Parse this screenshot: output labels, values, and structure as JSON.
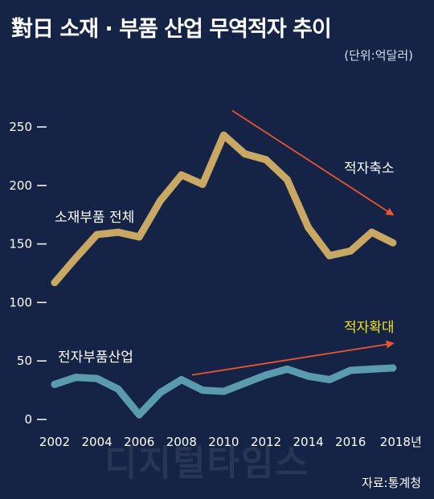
{
  "header": {
    "title": "對日 소재 · 부품 산업 무역적자 추이",
    "unit": "(단위:억달러)"
  },
  "footer": {
    "source": "자료:통계청",
    "watermark": "디지털타임스"
  },
  "colors": {
    "background": "#152446",
    "materials_series": "#c8a862",
    "electronics_series": "#5a9bb0",
    "trend_arrow": "#e8552e",
    "highlight_text": "#f2e21a"
  },
  "chart_data": {
    "type": "line",
    "title": "對日 소재 · 부품 산업 무역적자 추이",
    "ylabel": "(단위:억달러)",
    "xlabel": "",
    "ylim": [
      0,
      260
    ],
    "xlim": [
      2001.7,
      2018.2
    ],
    "yticks": [
      0,
      50,
      100,
      150,
      200,
      250
    ],
    "x_tick_labels": [
      "2002",
      "2004",
      "2006",
      "2008",
      "2010",
      "2012",
      "2014",
      "2016",
      "2018년"
    ],
    "x_tick_values": [
      2002,
      2004,
      2006,
      2008,
      2010,
      2012,
      2014,
      2016,
      2018
    ],
    "x": [
      2002,
      2003,
      2004,
      2005,
      2006,
      2007,
      2008,
      2009,
      2010,
      2011,
      2012,
      2013,
      2014,
      2015,
      2016,
      2017,
      2018
    ],
    "series": [
      {
        "name": "소재부품 전체",
        "values": [
          117,
          138,
          158,
          160,
          156,
          187,
          209,
          201,
          243,
          227,
          222,
          205,
          164,
          140,
          144,
          160,
          151
        ]
      },
      {
        "name": "전자부품산업",
        "values": [
          30,
          36,
          35,
          26,
          4,
          23,
          34,
          25,
          24,
          31,
          38,
          43,
          37,
          34,
          42,
          43,
          44
        ]
      }
    ],
    "annotations": [
      {
        "text": "적자축소",
        "x0": 2010.4,
        "y0": 264,
        "x1": 2018,
        "y1": 175
      },
      {
        "text": "적자확대",
        "x0": 2008.5,
        "y0": 38,
        "x1": 2018,
        "y1": 65
      }
    ],
    "grid": false,
    "legend": "none"
  }
}
